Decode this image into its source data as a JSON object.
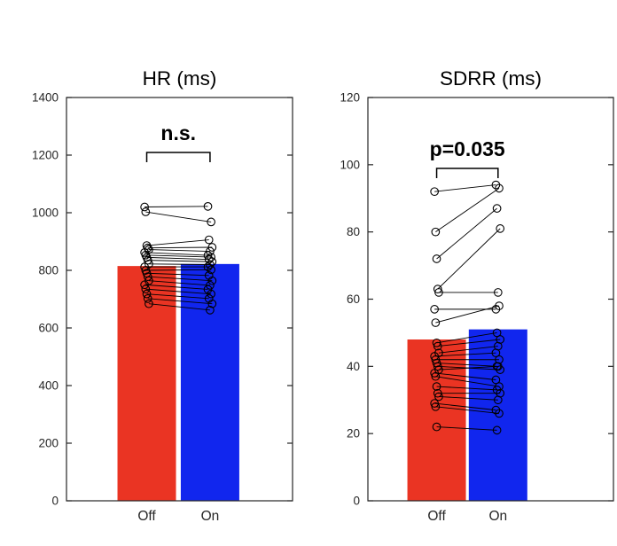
{
  "figure": {
    "background": "#ffffff",
    "axis_color": "#262626",
    "text_color": "#262626",
    "annotation_color": "#000000"
  },
  "chart_data": [
    {
      "type": "bar",
      "title": "HR (ms)",
      "categories": [
        "Off",
        "On"
      ],
      "bar_values": [
        815,
        822
      ],
      "bar_colors": [
        "#ea3423",
        "#1126ee"
      ],
      "ylim": [
        0,
        1400
      ],
      "yticks": [
        0,
        200,
        400,
        600,
        800,
        1000,
        1200,
        1400
      ],
      "annotation": "n.s.",
      "legend": "none",
      "grid": false,
      "paired_points": [
        [
          1020,
          1022
        ],
        [
          1003,
          968
        ],
        [
          886,
          906
        ],
        [
          878,
          880
        ],
        [
          872,
          866
        ],
        [
          862,
          852
        ],
        [
          853,
          846
        ],
        [
          845,
          838
        ],
        [
          835,
          830
        ],
        [
          822,
          820
        ],
        [
          812,
          812
        ],
        [
          800,
          802
        ],
        [
          790,
          782
        ],
        [
          778,
          764
        ],
        [
          764,
          748
        ],
        [
          750,
          734
        ],
        [
          735,
          718
        ],
        [
          718,
          702
        ],
        [
          702,
          684
        ],
        [
          684,
          662
        ]
      ]
    },
    {
      "type": "bar",
      "title": "SDRR (ms)",
      "categories": [
        "Off",
        "On"
      ],
      "bar_values": [
        48,
        51
      ],
      "bar_colors": [
        "#ea3423",
        "#1126ee"
      ],
      "ylim": [
        0,
        120
      ],
      "yticks": [
        0,
        20,
        40,
        60,
        80,
        100,
        120
      ],
      "annotation": "p=0.035",
      "legend": "none",
      "grid": false,
      "paired_points": [
        [
          92,
          94
        ],
        [
          80,
          93
        ],
        [
          72,
          87
        ],
        [
          63,
          81
        ],
        [
          62,
          62
        ],
        [
          57,
          57
        ],
        [
          53,
          58
        ],
        [
          47,
          50
        ],
        [
          46,
          48
        ],
        [
          44,
          46
        ],
        [
          43,
          44
        ],
        [
          42,
          42
        ],
        [
          41,
          40
        ],
        [
          40,
          39
        ],
        [
          39,
          40
        ],
        [
          38,
          36
        ],
        [
          37,
          34
        ],
        [
          34,
          33
        ],
        [
          32,
          32
        ],
        [
          31,
          30
        ],
        [
          29,
          27
        ],
        [
          28,
          26
        ],
        [
          22,
          21
        ]
      ]
    }
  ]
}
